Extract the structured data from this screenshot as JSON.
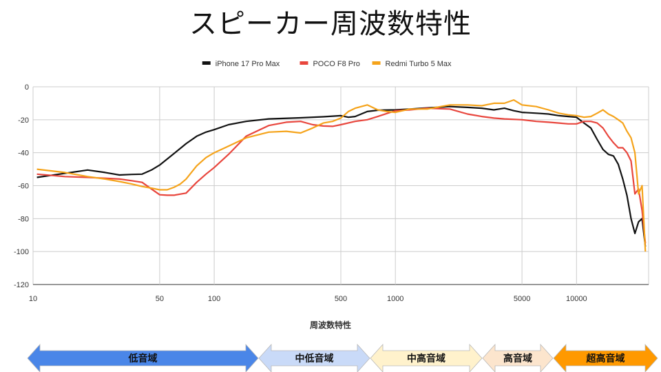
{
  "title": "スピーカー周波数特性",
  "chart_data": {
    "type": "line",
    "title": "スピーカー周波数特性",
    "xlabel": "周波数特性",
    "ylabel": "",
    "xscale": "log",
    "xlim": [
      10,
      25000
    ],
    "ylim": [
      -120,
      0
    ],
    "xticks": [
      10,
      50,
      100,
      500,
      1000,
      5000,
      10000
    ],
    "yticks": [
      0,
      -20,
      -40,
      -60,
      -80,
      -100,
      -120
    ],
    "grid": true,
    "legend_position": "top-center",
    "series": [
      {
        "name": "iPhone 17 Pro Max",
        "color": "#111111",
        "x": [
          10.5,
          15,
          20,
          25,
          30,
          35,
          40,
          45,
          50,
          60,
          70,
          80,
          90,
          100,
          120,
          150,
          200,
          300,
          400,
          500,
          550,
          600,
          700,
          800,
          1000,
          1200,
          1500,
          2000,
          2500,
          3000,
          3500,
          4000,
          4500,
          5000,
          6000,
          7000,
          8000,
          9000,
          10000,
          11000,
          12000,
          13000,
          14000,
          15000,
          16000,
          17000,
          18000,
          19000,
          20000,
          21000,
          22000,
          23000,
          24000
        ],
        "y": [
          -55,
          -52.5,
          -50.5,
          -52,
          -53.5,
          -53.2,
          -53,
          -50.5,
          -47.5,
          -40.5,
          -34.5,
          -30,
          -27.5,
          -26,
          -23,
          -21,
          -19.5,
          -18.8,
          -18.2,
          -17.5,
          -18.5,
          -18,
          -15,
          -14.2,
          -14,
          -13.5,
          -12.8,
          -12,
          -12.5,
          -13,
          -14,
          -13,
          -14.5,
          -15.5,
          -16,
          -16.5,
          -17.5,
          -18,
          -18.5,
          -22,
          -25,
          -32,
          -38,
          -41,
          -42,
          -47,
          -56,
          -66,
          -80,
          -89,
          -82,
          -80,
          -97
        ]
      },
      {
        "name": "POCO F8 Pro",
        "color": "#e8453c",
        "x": [
          10.5,
          15,
          20,
          25,
          30,
          35,
          40,
          45,
          50,
          55,
          60,
          70,
          80,
          90,
          100,
          120,
          150,
          200,
          250,
          300,
          350,
          400,
          450,
          500,
          600,
          700,
          800,
          1000,
          1200,
          1500,
          2000,
          2500,
          3000,
          3500,
          4000,
          5000,
          6000,
          7000,
          8000,
          9000,
          10000,
          11000,
          12000,
          13000,
          14000,
          15000,
          16000,
          17000,
          18000,
          19000,
          20000,
          21000,
          22000,
          23000,
          24000
        ],
        "y": [
          -53,
          -54.5,
          -55,
          -55.5,
          -56,
          -57,
          -58,
          -62,
          -65.5,
          -65.8,
          -65.8,
          -64.5,
          -58,
          -53,
          -49,
          -41,
          -30,
          -23.5,
          -21.5,
          -21,
          -23,
          -23.8,
          -24,
          -23,
          -21,
          -20,
          -18,
          -14.5,
          -14,
          -13,
          -13.5,
          -16.5,
          -18,
          -19,
          -19.5,
          -20,
          -21,
          -21.5,
          -22,
          -22.5,
          -22.5,
          -21,
          -21,
          -22,
          -25,
          -30,
          -34,
          -37,
          -37,
          -40,
          -45,
          -65,
          -62,
          -75,
          -95
        ]
      },
      {
        "name": "Redmi Turbo 5 Max",
        "color": "#f5a31a",
        "x": [
          10.5,
          15,
          20,
          25,
          30,
          35,
          40,
          45,
          50,
          55,
          60,
          65,
          70,
          80,
          90,
          100,
          120,
          150,
          200,
          250,
          300,
          350,
          400,
          450,
          500,
          550,
          600,
          700,
          800,
          900,
          1000,
          1200,
          1500,
          2000,
          2500,
          3000,
          3500,
          4000,
          4500,
          5000,
          6000,
          7000,
          8000,
          9000,
          10000,
          11000,
          12000,
          13000,
          14000,
          15000,
          16000,
          17000,
          18000,
          19000,
          20000,
          21000,
          22000,
          23000,
          24000
        ],
        "y": [
          -50,
          -52,
          -54.5,
          -56,
          -57.5,
          -59,
          -60.5,
          -61.5,
          -62.5,
          -62.5,
          -61,
          -59,
          -56,
          -48,
          -43,
          -40,
          -36,
          -31,
          -27.5,
          -27,
          -28,
          -25,
          -22,
          -21,
          -19,
          -15,
          -13,
          -11,
          -14,
          -15,
          -15.5,
          -13.5,
          -13.5,
          -11,
          -11,
          -11.5,
          -10,
          -10,
          -8,
          -11,
          -12,
          -14,
          -16,
          -17,
          -17.5,
          -18.5,
          -18,
          -16,
          -14,
          -16.5,
          -18,
          -20,
          -22,
          -27,
          -31,
          -40,
          -65,
          -60,
          -100
        ]
      }
    ]
  },
  "bands": [
    {
      "label": "低音域",
      "color": "#4a86e8"
    },
    {
      "label": "中低音域",
      "color": "#c9daf8"
    },
    {
      "label": "中高音域",
      "color": "#fff2cc"
    },
    {
      "label": "高音域",
      "color": "#fce5cd"
    },
    {
      "label": "超高音域",
      "color": "#ff9900"
    }
  ]
}
